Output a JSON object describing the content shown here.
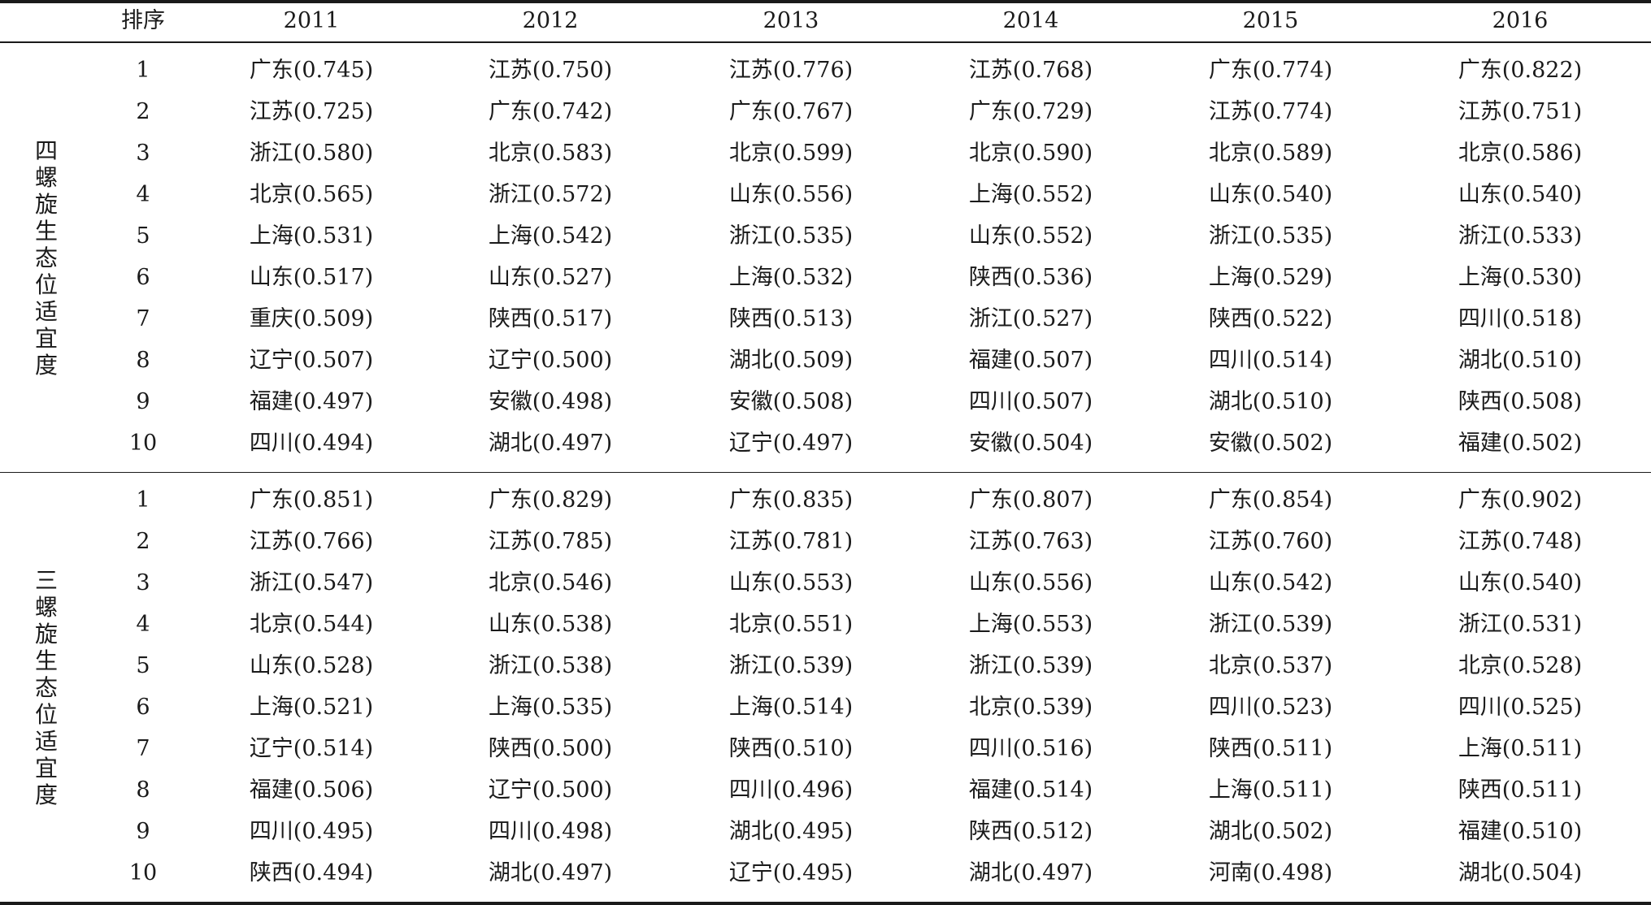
{
  "header": {
    "rank_label": "排序",
    "years": [
      "2011",
      "2012",
      "2013",
      "2014",
      "2015",
      "2016"
    ]
  },
  "sections": [
    {
      "label": "四螺旋生态位适宜度",
      "rows": [
        {
          "rank": "1",
          "cells": [
            "广东(0.745)",
            "江苏(0.750)",
            "江苏(0.776)",
            "江苏(0.768)",
            "广东(0.774)",
            "广东(0.822)"
          ]
        },
        {
          "rank": "2",
          "cells": [
            "江苏(0.725)",
            "广东(0.742)",
            "广东(0.767)",
            "广东(0.729)",
            "江苏(0.774)",
            "江苏(0.751)"
          ]
        },
        {
          "rank": "3",
          "cells": [
            "浙江(0.580)",
            "北京(0.583)",
            "北京(0.599)",
            "北京(0.590)",
            "北京(0.589)",
            "北京(0.586)"
          ]
        },
        {
          "rank": "4",
          "cells": [
            "北京(0.565)",
            "浙江(0.572)",
            "山东(0.556)",
            "上海(0.552)",
            "山东(0.540)",
            "山东(0.540)"
          ]
        },
        {
          "rank": "5",
          "cells": [
            "上海(0.531)",
            "上海(0.542)",
            "浙江(0.535)",
            "山东(0.552)",
            "浙江(0.535)",
            "浙江(0.533)"
          ]
        },
        {
          "rank": "6",
          "cells": [
            "山东(0.517)",
            "山东(0.527)",
            "上海(0.532)",
            "陕西(0.536)",
            "上海(0.529)",
            "上海(0.530)"
          ]
        },
        {
          "rank": "7",
          "cells": [
            "重庆(0.509)",
            "陕西(0.517)",
            "陕西(0.513)",
            "浙江(0.527)",
            "陕西(0.522)",
            "四川(0.518)"
          ]
        },
        {
          "rank": "8",
          "cells": [
            "辽宁(0.507)",
            "辽宁(0.500)",
            "湖北(0.509)",
            "福建(0.507)",
            "四川(0.514)",
            "湖北(0.510)"
          ]
        },
        {
          "rank": "9",
          "cells": [
            "福建(0.497)",
            "安徽(0.498)",
            "安徽(0.508)",
            "四川(0.507)",
            "湖北(0.510)",
            "陕西(0.508)"
          ]
        },
        {
          "rank": "10",
          "cells": [
            "四川(0.494)",
            "湖北(0.497)",
            "辽宁(0.497)",
            "安徽(0.504)",
            "安徽(0.502)",
            "福建(0.502)"
          ]
        }
      ]
    },
    {
      "label": "三螺旋生态位适宜度",
      "rows": [
        {
          "rank": "1",
          "cells": [
            "广东(0.851)",
            "广东(0.829)",
            "广东(0.835)",
            "广东(0.807)",
            "广东(0.854)",
            "广东(0.902)"
          ]
        },
        {
          "rank": "2",
          "cells": [
            "江苏(0.766)",
            "江苏(0.785)",
            "江苏(0.781)",
            "江苏(0.763)",
            "江苏(0.760)",
            "江苏(0.748)"
          ]
        },
        {
          "rank": "3",
          "cells": [
            "浙江(0.547)",
            "北京(0.546)",
            "山东(0.553)",
            "山东(0.556)",
            "山东(0.542)",
            "山东(0.540)"
          ]
        },
        {
          "rank": "4",
          "cells": [
            "北京(0.544)",
            "山东(0.538)",
            "北京(0.551)",
            "上海(0.553)",
            "浙江(0.539)",
            "浙江(0.531)"
          ]
        },
        {
          "rank": "5",
          "cells": [
            "山东(0.528)",
            "浙江(0.538)",
            "浙江(0.539)",
            "浙江(0.539)",
            "北京(0.537)",
            "北京(0.528)"
          ]
        },
        {
          "rank": "6",
          "cells": [
            "上海(0.521)",
            "上海(0.535)",
            "上海(0.514)",
            "北京(0.539)",
            "四川(0.523)",
            "四川(0.525)"
          ]
        },
        {
          "rank": "7",
          "cells": [
            "辽宁(0.514)",
            "陕西(0.500)",
            "陕西(0.510)",
            "四川(0.516)",
            "陕西(0.511)",
            "上海(0.511)"
          ]
        },
        {
          "rank": "8",
          "cells": [
            "福建(0.506)",
            "辽宁(0.500)",
            "四川(0.496)",
            "福建(0.514)",
            "上海(0.511)",
            "陕西(0.511)"
          ]
        },
        {
          "rank": "9",
          "cells": [
            "四川(0.495)",
            "四川(0.498)",
            "湖北(0.495)",
            "陕西(0.512)",
            "湖北(0.502)",
            "福建(0.510)"
          ]
        },
        {
          "rank": "10",
          "cells": [
            "陕西(0.494)",
            "湖北(0.497)",
            "辽宁(0.495)",
            "湖北(0.497)",
            "河南(0.498)",
            "湖北(0.504)"
          ]
        }
      ]
    }
  ]
}
